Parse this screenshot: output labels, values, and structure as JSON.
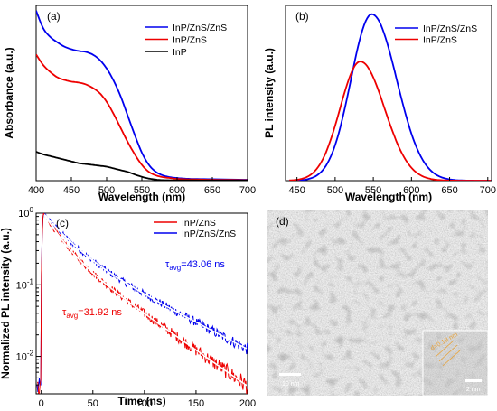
{
  "panels": {
    "a": {
      "label": "(a)",
      "chart_data": {
        "type": "line",
        "xlabel": "Wavelength (nm)",
        "ylabel": "Absorbance (a.u.)",
        "xlim": [
          400,
          700
        ],
        "ylim": [
          0,
          1
        ],
        "xticks": [
          "400",
          "450",
          "500",
          "550",
          "600",
          "650",
          "700"
        ],
        "y_tick_labels": false,
        "legend": "top-right",
        "series": [
          {
            "name": "InP/ZnS/ZnS",
            "color": "#0000ee",
            "x": [
              400,
              410,
              420,
              430,
              440,
              450,
              460,
              470,
              480,
              490,
              500,
              510,
              520,
              530,
              540,
              550,
              560,
              570,
              580,
              590,
              600,
              620,
              650,
              700
            ],
            "y": [
              0.97,
              0.87,
              0.82,
              0.79,
              0.765,
              0.75,
              0.74,
              0.735,
              0.72,
              0.69,
              0.64,
              0.57,
              0.48,
              0.37,
              0.26,
              0.16,
              0.09,
              0.05,
              0.03,
              0.02,
              0.015,
              0.01,
              0.008,
              0.005
            ]
          },
          {
            "name": "InP/ZnS",
            "color": "#ee0000",
            "x": [
              400,
              410,
              420,
              430,
              440,
              450,
              460,
              470,
              480,
              490,
              500,
              510,
              520,
              530,
              540,
              550,
              560,
              570,
              580,
              590,
              600,
              620,
              650,
              700
            ],
            "y": [
              0.72,
              0.66,
              0.62,
              0.59,
              0.575,
              0.565,
              0.56,
              0.55,
              0.53,
              0.5,
              0.45,
              0.38,
              0.3,
              0.22,
              0.15,
              0.09,
              0.05,
              0.03,
              0.02,
              0.015,
              0.01,
              0.007,
              0.005,
              0.003
            ]
          },
          {
            "name": "InP",
            "color": "#000000",
            "x": [
              400,
              410,
              420,
              430,
              440,
              450,
              460,
              470,
              480,
              490,
              500,
              510,
              520,
              530,
              540,
              550,
              560,
              570,
              580,
              600,
              650,
              700
            ],
            "y": [
              0.165,
              0.15,
              0.14,
              0.13,
              0.12,
              0.11,
              0.1,
              0.095,
              0.09,
              0.085,
              0.08,
              0.07,
              0.06,
              0.05,
              0.035,
              0.022,
              0.012,
              0.006,
              0.003,
              0.002,
              0.001,
              0.001
            ]
          }
        ]
      }
    },
    "b": {
      "label": "(b)",
      "chart_data": {
        "type": "line",
        "xlabel": "Wavelength (nm)",
        "ylabel": "PL intensity (a.u.)",
        "xlim": [
          435,
          705
        ],
        "ylim": [
          0,
          1
        ],
        "xticks": [
          "450",
          "500",
          "550",
          "600",
          "650",
          "700"
        ],
        "y_tick_labels": false,
        "legend": "top-right",
        "series": [
          {
            "name": "InP/ZnS/ZnS",
            "color": "#0000ee",
            "peak_x": 548,
            "peak_y": 0.95,
            "fwhm": 70
          },
          {
            "name": "InP/ZnS",
            "color": "#ee0000",
            "peak_x": 533,
            "peak_y": 0.68,
            "fwhm": 68
          }
        ]
      }
    },
    "c": {
      "label": "(c)",
      "chart_data": {
        "type": "line",
        "xlabel": "Time (ns)",
        "ylabel": "Normalized PL intensity (a.u.)",
        "xlim": [
          -5,
          200
        ],
        "ylim": [
          0.003,
          1
        ],
        "yscale": "log",
        "xticks": [
          "0",
          "50",
          "100",
          "150",
          "200"
        ],
        "yticks": [
          {
            "value": 1,
            "base": "10",
            "exp": "0"
          },
          {
            "value": 0.1,
            "base": "10",
            "exp": "-1"
          },
          {
            "value": 0.01,
            "base": "10",
            "exp": "-2"
          }
        ],
        "legend": "top-right",
        "series": [
          {
            "name": "InP/ZnS",
            "color": "#ee0000",
            "tau_avg_ns": 31.92,
            "noise_floor": 0.004
          },
          {
            "name": "InP/ZnS/ZnS",
            "color": "#0000ee",
            "tau_avg_ns": 43.06,
            "noise_floor": 0.004
          }
        ],
        "annotations": [
          {
            "sym": "τ",
            "sub": "avg",
            "text": "=43.06 ns",
            "color": "#0000ee"
          },
          {
            "sym": "τ",
            "sub": "avg",
            "text": "=31.92 ns",
            "color": "#ee0000"
          }
        ]
      }
    },
    "d": {
      "label": "(d)",
      "scalebar_main": "10 nm",
      "scalebar_inset": "2 nm",
      "inset_annotation": "d=0.19 nm"
    }
  }
}
